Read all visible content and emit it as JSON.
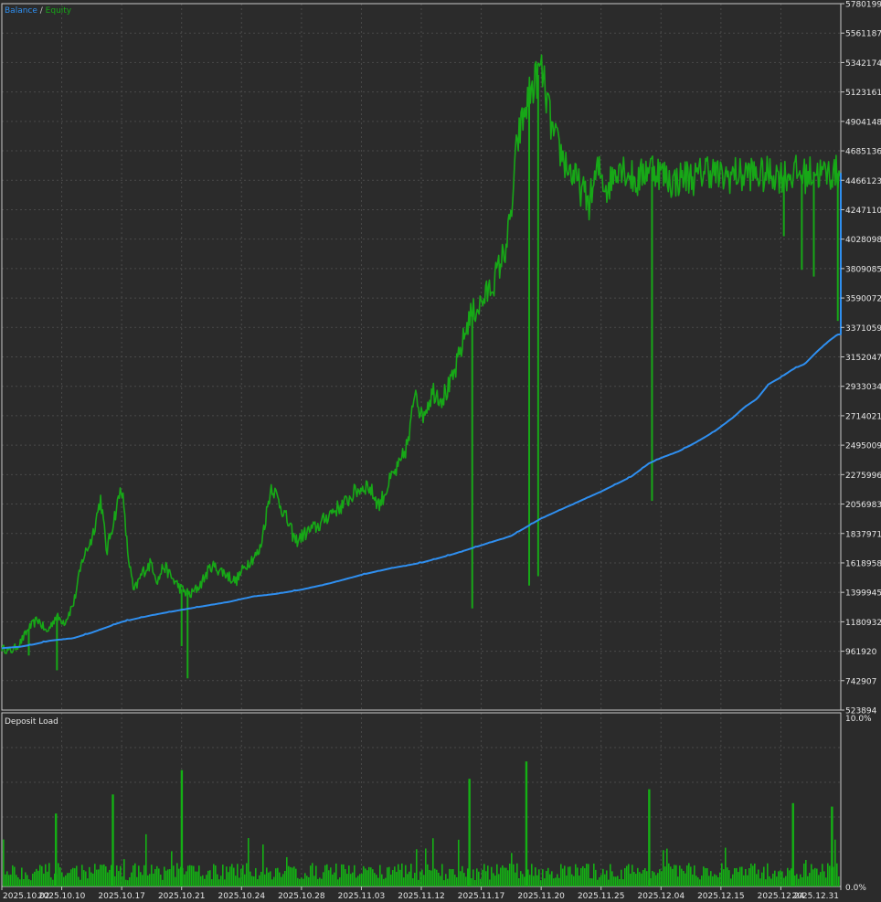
{
  "legend": {
    "balance_label": "Balance",
    "separator": " / ",
    "equity_label": "Equity",
    "deposit_label": "Deposit Load"
  },
  "colors": {
    "background": "#2b2b2b",
    "border": "#c8c8c8",
    "grid": "#4a4a4a",
    "text": "#e6e6e6",
    "balance": "#2f8ff0",
    "equity": "#17a817",
    "deposit": "#14b014"
  },
  "chart_data": [
    {
      "type": "line",
      "title": "",
      "legend": [
        "Balance",
        "Equity"
      ],
      "legend_position": "top-left",
      "grid": true,
      "ylim": [
        523894,
        5780199
      ],
      "y_ticks": [
        "5780199",
        "5561187",
        "5342174",
        "5123161",
        "4904148",
        "4685136",
        "4466123",
        "4247110",
        "4028098",
        "3809085",
        "3590072",
        "3371059",
        "3152047",
        "2933034",
        "2714021",
        "2495009",
        "2275996",
        "2056983",
        "1837971",
        "1618958",
        "1399945",
        "1180932",
        "961920",
        "742907",
        "523894"
      ],
      "x_dates": [
        "2025.10.02",
        "2025.10.10",
        "2025.10.17",
        "2025.10.21",
        "2025.10.24",
        "2025.10.28",
        "2025.11.03",
        "2025.11.12",
        "2025.11.17",
        "2025.11.20",
        "2025.11.25",
        "2025.12.04",
        "2025.12.15",
        "2025.12.24",
        "2025.12.31"
      ],
      "series": [
        {
          "name": "Balance",
          "x": [
            0,
            0.3,
            0.5,
            0.8,
            1.2,
            1.5,
            2,
            2.5,
            3,
            3.4,
            3.8,
            4.2,
            4.6,
            5,
            5.5,
            6,
            6.5,
            7,
            7.5,
            8,
            8.5,
            9,
            9.5,
            10,
            10.5,
            10.8,
            11,
            11.3,
            11.6,
            11.9,
            12.2,
            12.4,
            12.6,
            12.8,
            13,
            13.2,
            13.4,
            13.6,
            13.8,
            13.95,
            14
          ],
          "values": [
            985000,
            995000,
            1010000,
            1040000,
            1060000,
            1100000,
            1180000,
            1230000,
            1270000,
            1300000,
            1330000,
            1370000,
            1390000,
            1420000,
            1470000,
            1530000,
            1580000,
            1620000,
            1680000,
            1750000,
            1820000,
            1950000,
            2050000,
            2150000,
            2260000,
            2360000,
            2400000,
            2450000,
            2520000,
            2600000,
            2700000,
            2780000,
            2840000,
            2950000,
            3000000,
            3060000,
            3100000,
            3190000,
            3270000,
            3320000,
            4520000
          ]
        },
        {
          "name": "Equity",
          "x": [
            0,
            0.15,
            0.3,
            0.45,
            0.6,
            0.75,
            0.9,
            1.05,
            1.2,
            1.35,
            1.5,
            1.65,
            1.75,
            1.82,
            1.9,
            2,
            2.1,
            2.2,
            2.35,
            2.5,
            2.6,
            2.7,
            2.85,
            3,
            3.15,
            3.3,
            3.5,
            3.7,
            3.9,
            4.1,
            4.3,
            4.5,
            4.7,
            4.9,
            5.1,
            5.3,
            5.5,
            5.7,
            5.9,
            6.1,
            6.3,
            6.5,
            6.65,
            6.8,
            6.9,
            7,
            7.2,
            7.35,
            7.5,
            7.6,
            7.8,
            8,
            8.2,
            8.4,
            8.5,
            8.6,
            8.8,
            9,
            9.2,
            9.4,
            9.6,
            9.8,
            9.95,
            10.1,
            10.3,
            10.45,
            10.6,
            10.8,
            11,
            11.2,
            11.4,
            11.6,
            11.75,
            11.9,
            12,
            12.15,
            12.25,
            12.35,
            12.45,
            12.55,
            12.7,
            12.85,
            13,
            13.15,
            13.25,
            13.4,
            13.55,
            13.7,
            13.85,
            14
          ],
          "values": [
            985000,
            960000,
            1020000,
            1130000,
            1200000,
            1100000,
            1220000,
            1180000,
            1320000,
            1650000,
            1800000,
            2100000,
            1700000,
            1850000,
            2000000,
            2200000,
            1700000,
            1400000,
            1550000,
            1620000,
            1480000,
            1600000,
            1500000,
            1420000,
            1380000,
            1450000,
            1600000,
            1550000,
            1480000,
            1620000,
            1700000,
            2200000,
            2000000,
            1780000,
            1850000,
            1900000,
            2000000,
            2050000,
            2150000,
            2200000,
            2050000,
            2250000,
            2350000,
            2550000,
            2950000,
            2700000,
            2900000,
            2850000,
            2950000,
            3100000,
            3450000,
            3550000,
            3700000,
            3950000,
            4200000,
            4750000,
            5100000,
            5300000,
            4800000,
            4600000,
            4450000,
            4300000,
            4550000,
            4400000,
            4600000,
            4520000,
            4450000,
            4580000,
            4520000,
            4450000,
            4500000,
            4480000,
            4560000,
            4520000,
            4480000,
            4500000,
            4520000,
            4490000,
            4530000,
            4510000,
            4500000,
            4520000,
            4500000,
            4510000,
            4520000,
            4500000,
            4530000,
            4510000,
            4520000,
            4520000
          ]
        }
      ]
    },
    {
      "type": "bar",
      "title": "Deposit Load",
      "ylim": [
        0,
        10
      ],
      "y_ticks": [
        "10.0%",
        "0.0%"
      ],
      "grid": true,
      "baseline_level": 0.9,
      "spikes": [
        {
          "x": 0.9,
          "value": 4.2
        },
        {
          "x": 1.85,
          "value": 5.3
        },
        {
          "x": 3.0,
          "value": 6.7
        },
        {
          "x": 7.8,
          "value": 6.2
        },
        {
          "x": 8.75,
          "value": 7.2
        },
        {
          "x": 10.8,
          "value": 5.6
        },
        {
          "x": 13.2,
          "value": 4.8
        },
        {
          "x": 13.85,
          "value": 4.6
        }
      ]
    }
  ]
}
